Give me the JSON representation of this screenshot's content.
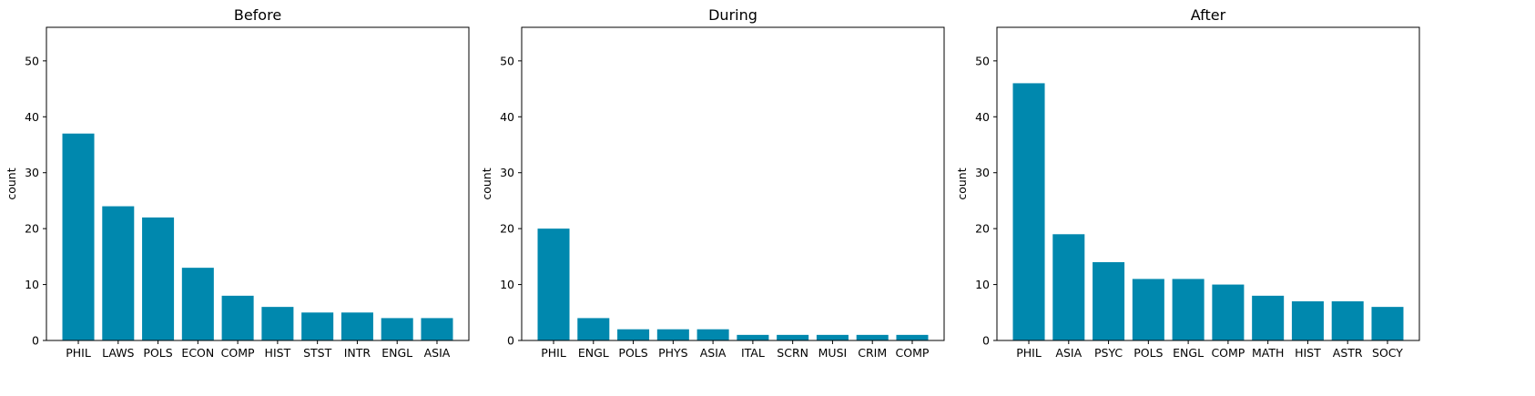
{
  "chart_data": [
    {
      "type": "bar",
      "title": "Before",
      "xlabel": "",
      "ylabel": "count",
      "ylim": [
        0,
        56
      ],
      "yticks": [
        0,
        10,
        20,
        30,
        40,
        50
      ],
      "categories": [
        "PHIL",
        "LAWS",
        "POLS",
        "ECON",
        "COMP",
        "HIST",
        "STST",
        "INTR",
        "ENGL",
        "ASIA"
      ],
      "values": [
        37,
        24,
        22,
        13,
        8,
        6,
        5,
        5,
        4,
        4
      ],
      "grid": false
    },
    {
      "type": "bar",
      "title": "During",
      "xlabel": "",
      "ylabel": "count",
      "ylim": [
        0,
        56
      ],
      "yticks": [
        0,
        10,
        20,
        30,
        40,
        50
      ],
      "categories": [
        "PHIL",
        "ENGL",
        "POLS",
        "PHYS",
        "ASIA",
        "ITAL",
        "SCRN",
        "MUSI",
        "CRIM",
        "COMP"
      ],
      "values": [
        20,
        4,
        2,
        2,
        2,
        1,
        1,
        1,
        1,
        1
      ],
      "grid": false
    },
    {
      "type": "bar",
      "title": "After",
      "xlabel": "",
      "ylabel": "count",
      "ylim": [
        0,
        56
      ],
      "yticks": [
        0,
        10,
        20,
        30,
        40,
        50
      ],
      "categories": [
        "PHIL",
        "ASIA",
        "PSYC",
        "POLS",
        "ENGL",
        "COMP",
        "MATH",
        "HIST",
        "ASTR",
        "SOCY"
      ],
      "values": [
        46,
        19,
        14,
        11,
        11,
        10,
        8,
        7,
        7,
        6
      ],
      "grid": false
    }
  ],
  "colors": {
    "bar": "#0088ae",
    "axis": "#000000"
  }
}
